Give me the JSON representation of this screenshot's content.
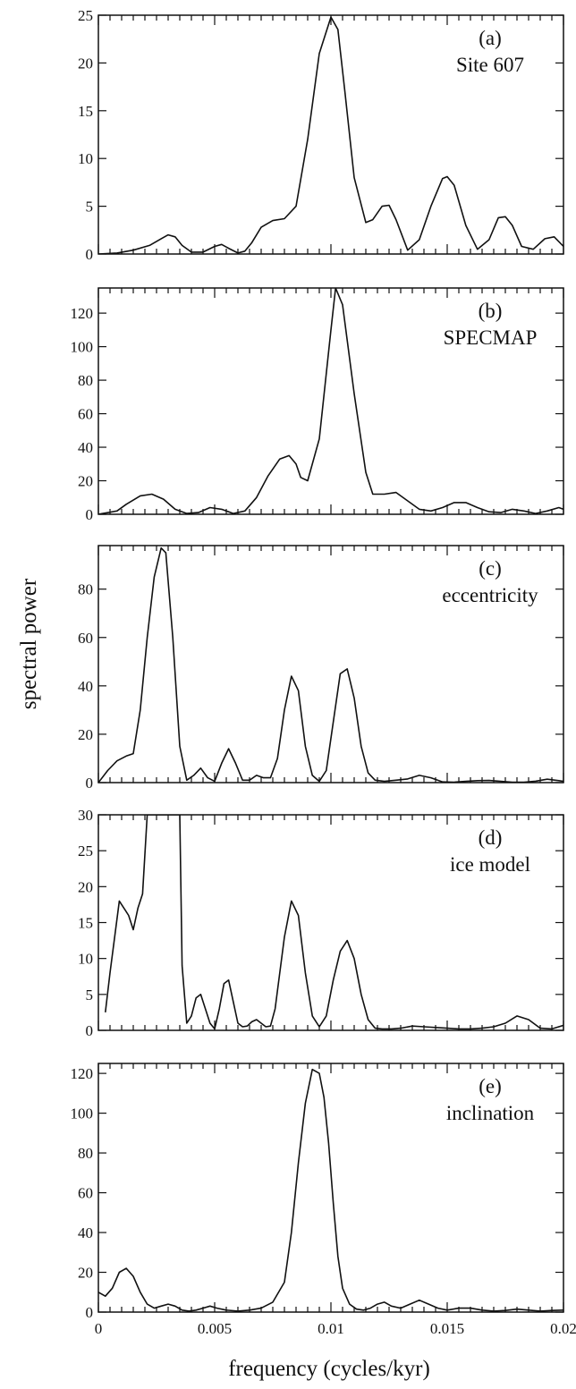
{
  "figure": {
    "ylabel": "spectral power",
    "xlabel": "frequency (cycles/kyr)"
  },
  "chart_data": [
    {
      "type": "line",
      "label_letter": "(a)",
      "label_name": "Site 607",
      "xlim": [
        0,
        0.02
      ],
      "ylim": [
        0,
        25
      ],
      "yticks": [
        0,
        5,
        10,
        15,
        20,
        25
      ],
      "x": [
        0,
        0.0008,
        0.0015,
        0.0022,
        0.0027,
        0.003,
        0.0033,
        0.0036,
        0.004,
        0.0045,
        0.005,
        0.0053,
        0.0056,
        0.006,
        0.0063,
        0.0066,
        0.007,
        0.0075,
        0.008,
        0.0085,
        0.009,
        0.0095,
        0.01,
        0.0103,
        0.0106,
        0.011,
        0.0115,
        0.0118,
        0.0122,
        0.0125,
        0.0128,
        0.0133,
        0.0138,
        0.0143,
        0.0148,
        0.015,
        0.0153,
        0.0158,
        0.0163,
        0.0168,
        0.0172,
        0.0175,
        0.0178,
        0.0182,
        0.0187,
        0.0192,
        0.0196,
        0.02
      ],
      "y": [
        0,
        0.1,
        0.4,
        0.9,
        1.6,
        2.0,
        1.8,
        0.9,
        0.2,
        0.2,
        0.8,
        1.0,
        0.6,
        0.1,
        0.3,
        1.2,
        2.8,
        3.5,
        3.7,
        5.0,
        12.0,
        21.0,
        24.8,
        23.5,
        17.0,
        8.0,
        3.3,
        3.6,
        5.0,
        5.1,
        3.6,
        0.4,
        1.5,
        5.0,
        7.9,
        8.1,
        7.2,
        3.0,
        0.5,
        1.5,
        3.8,
        3.9,
        3.0,
        0.8,
        0.5,
        1.6,
        1.8,
        0.8
      ]
    },
    {
      "type": "line",
      "label_letter": "(b)",
      "label_name": "SPECMAP",
      "xlim": [
        0,
        0.02
      ],
      "ylim": [
        0,
        135
      ],
      "yticks": [
        0,
        20,
        40,
        60,
        80,
        100,
        120
      ],
      "x": [
        0,
        0.0008,
        0.0012,
        0.0018,
        0.0023,
        0.0028,
        0.0033,
        0.0038,
        0.0043,
        0.0048,
        0.0053,
        0.0058,
        0.0063,
        0.0068,
        0.0073,
        0.0078,
        0.0082,
        0.0085,
        0.0087,
        0.009,
        0.0095,
        0.01,
        0.0102,
        0.0105,
        0.011,
        0.0115,
        0.0118,
        0.0123,
        0.0128,
        0.0133,
        0.0138,
        0.0143,
        0.0148,
        0.0153,
        0.0158,
        0.0163,
        0.0168,
        0.0173,
        0.0178,
        0.0183,
        0.0188,
        0.0193,
        0.0198,
        0.02
      ],
      "y": [
        0,
        2,
        6,
        11,
        12,
        9,
        3,
        0.5,
        1,
        4,
        3,
        0.5,
        2,
        10,
        23,
        33,
        35,
        30,
        22,
        20,
        45,
        110,
        135,
        125,
        72,
        25,
        12,
        12,
        13,
        8,
        3,
        2,
        4,
        7,
        7,
        4,
        1.5,
        1,
        3,
        2,
        0.5,
        2,
        4,
        3
      ]
    },
    {
      "type": "line",
      "label_letter": "(c)",
      "label_name": "eccentricity",
      "xlim": [
        0,
        0.02
      ],
      "ylim": [
        0,
        98
      ],
      "yticks": [
        0,
        20,
        40,
        60,
        80
      ],
      "x": [
        0,
        0.0004,
        0.0008,
        0.0012,
        0.0015,
        0.0018,
        0.0021,
        0.0024,
        0.0027,
        0.0029,
        0.0032,
        0.0035,
        0.0038,
        0.0041,
        0.0044,
        0.0047,
        0.005,
        0.0053,
        0.0056,
        0.0059,
        0.0062,
        0.0065,
        0.0068,
        0.0071,
        0.0074,
        0.0077,
        0.008,
        0.0083,
        0.0086,
        0.0089,
        0.0092,
        0.0095,
        0.0098,
        0.0101,
        0.0104,
        0.0107,
        0.011,
        0.0113,
        0.0116,
        0.0119,
        0.0123,
        0.0128,
        0.0133,
        0.0138,
        0.0143,
        0.0148,
        0.0153,
        0.0158,
        0.0163,
        0.0168,
        0.0173,
        0.0178,
        0.0183,
        0.0188,
        0.0193,
        0.0198,
        0.02
      ],
      "y": [
        0,
        5,
        9,
        11,
        12,
        30,
        60,
        85,
        97,
        95,
        60,
        15,
        1,
        3,
        6,
        2,
        0.5,
        8,
        14,
        8,
        1,
        1,
        3,
        2,
        2,
        10,
        30,
        44,
        38,
        15,
        3,
        0.5,
        5,
        25,
        45,
        47,
        35,
        15,
        4,
        1,
        0.5,
        1,
        1.5,
        3,
        2,
        0.3,
        0.2,
        0.5,
        0.8,
        0.9,
        0.5,
        0.2,
        0.2,
        0.6,
        1.4,
        0.8,
        0.5
      ]
    },
    {
      "type": "line",
      "label_letter": "(d)",
      "label_name": "ice model",
      "xlim": [
        0,
        0.02
      ],
      "ylim": [
        0,
        30
      ],
      "yticks": [
        0,
        5,
        10,
        15,
        20,
        25,
        30
      ],
      "x": [
        0.0003,
        0.0005,
        0.0007,
        0.0009,
        0.0011,
        0.0013,
        0.0015,
        0.0017,
        0.0019,
        0.0021,
        0.0023,
        0.0025,
        0.0027,
        0.0029,
        0.0031,
        0.0033,
        0.0035,
        0.0036,
        0.0038,
        0.004,
        0.0042,
        0.0044,
        0.0046,
        0.0048,
        0.005,
        0.0052,
        0.0054,
        0.0056,
        0.0058,
        0.006,
        0.0062,
        0.0064,
        0.0066,
        0.0068,
        0.007,
        0.0072,
        0.0074,
        0.0076,
        0.0078,
        0.008,
        0.0083,
        0.0086,
        0.0089,
        0.0092,
        0.0095,
        0.0098,
        0.0101,
        0.0104,
        0.0107,
        0.011,
        0.0113,
        0.0116,
        0.0119,
        0.0122,
        0.0126,
        0.013,
        0.0135,
        0.014,
        0.0145,
        0.015,
        0.0155,
        0.016,
        0.0165,
        0.017,
        0.0175,
        0.018,
        0.0185,
        0.019,
        0.0195,
        0.02
      ],
      "y": [
        2.5,
        8,
        13,
        18,
        17,
        16,
        14,
        17,
        19,
        30,
        30,
        30,
        30,
        30,
        30,
        30,
        30,
        9,
        1,
        2,
        4.5,
        5,
        3,
        1,
        0.2,
        3,
        6.5,
        7,
        4,
        1,
        0.5,
        0.6,
        1.2,
        1.5,
        1,
        0.5,
        0.6,
        3,
        8,
        13,
        18,
        16,
        8,
        2,
        0.5,
        2,
        7,
        11,
        12.5,
        10,
        5,
        1.5,
        0.3,
        0.2,
        0.2,
        0.3,
        0.6,
        0.5,
        0.4,
        0.3,
        0.2,
        0.2,
        0.3,
        0.5,
        1,
        2,
        1.5,
        0.3,
        0.2,
        0.7
      ]
    },
    {
      "type": "line",
      "label_letter": "(e)",
      "label_name": "inclination",
      "xlim": [
        0,
        0.02
      ],
      "ylim": [
        0,
        125
      ],
      "yticks": [
        0,
        20,
        40,
        60,
        80,
        100,
        120
      ],
      "xticks": [
        0,
        0.005,
        0.01,
        0.015,
        0.02
      ],
      "xticklabels": [
        "0",
        "0.005",
        "0.01",
        "0.015",
        "0.02"
      ],
      "x": [
        0,
        0.0003,
        0.0006,
        0.0009,
        0.0012,
        0.0015,
        0.0018,
        0.0021,
        0.0024,
        0.0027,
        0.003,
        0.0033,
        0.0036,
        0.0039,
        0.0042,
        0.0045,
        0.0048,
        0.0051,
        0.0055,
        0.006,
        0.0065,
        0.007,
        0.0075,
        0.008,
        0.0083,
        0.0086,
        0.0089,
        0.0092,
        0.0095,
        0.0097,
        0.0099,
        0.0101,
        0.0103,
        0.0105,
        0.0108,
        0.0111,
        0.0114,
        0.0117,
        0.012,
        0.0123,
        0.0126,
        0.013,
        0.0134,
        0.0138,
        0.0142,
        0.0146,
        0.015,
        0.0155,
        0.016,
        0.0165,
        0.017,
        0.0175,
        0.018,
        0.0185,
        0.019,
        0.0195,
        0.02
      ],
      "y": [
        10,
        8,
        12,
        20,
        22,
        18,
        10,
        4,
        2,
        3,
        4,
        3,
        1,
        0.5,
        1,
        2,
        3,
        2,
        1,
        0.5,
        1,
        2,
        5,
        15,
        40,
        75,
        105,
        122,
        120,
        108,
        85,
        55,
        28,
        12,
        4,
        1.5,
        1,
        2,
        4,
        5,
        3,
        2,
        4,
        6,
        4,
        2,
        1,
        2,
        2,
        1,
        0.5,
        0.8,
        1.5,
        1,
        0.5,
        0.8,
        1
      ]
    }
  ]
}
